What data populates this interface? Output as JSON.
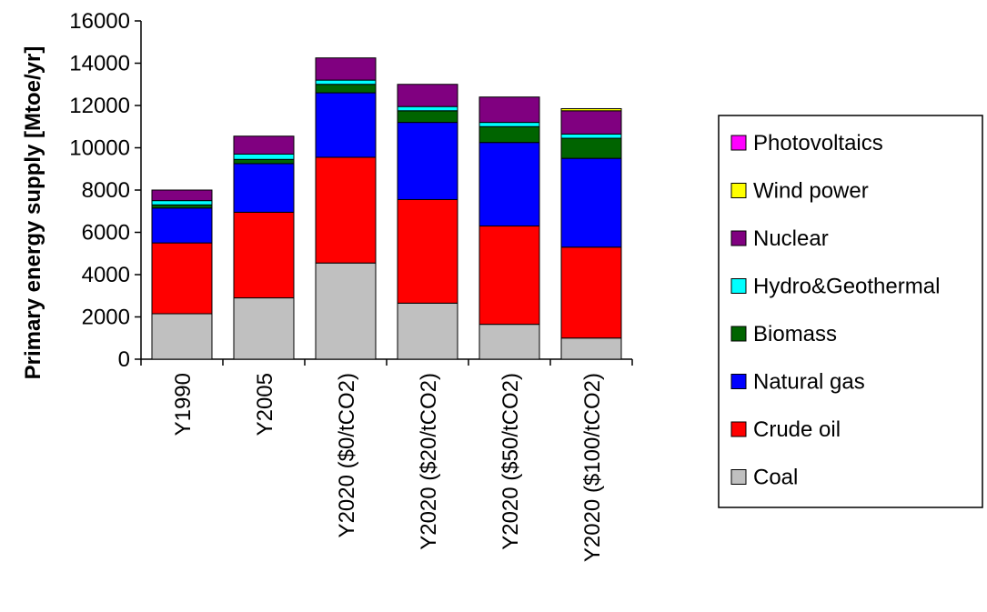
{
  "chart_data": {
    "type": "bar",
    "stacked": true,
    "title": "",
    "xlabel": "",
    "ylabel": "Primary energy supply [Mtoe/yr]",
    "ylim": [
      0,
      16000
    ],
    "yticks": [
      0,
      2000,
      4000,
      6000,
      8000,
      10000,
      12000,
      14000,
      16000
    ],
    "ytick_labels": [
      "0",
      "2000",
      "4000",
      "6000",
      "8000",
      "10000",
      "12000",
      "14000",
      "16000"
    ],
    "grid": false,
    "legend_position": "right",
    "categories": [
      "Y1990",
      "Y2005",
      "Y2020 ($0/tCO2)",
      "Y2020 ($20/tCO2)",
      "Y2020 ($50/tCO2)",
      "Y2020 ($100/tCO2)"
    ],
    "series": [
      {
        "name": "Coal",
        "color": "#c0c0c0",
        "values": [
          2150,
          2900,
          4550,
          2650,
          1650,
          1000
        ]
      },
      {
        "name": "Crude oil",
        "color": "#ff0000",
        "values": [
          3350,
          4050,
          5000,
          4900,
          4650,
          4300
        ]
      },
      {
        "name": "Natural gas",
        "color": "#0000ff",
        "values": [
          1650,
          2300,
          3050,
          3650,
          3950,
          4200
        ]
      },
      {
        "name": "Biomass",
        "color": "#006400",
        "values": [
          150,
          200,
          400,
          550,
          750,
          950
        ]
      },
      {
        "name": "Hydro&Geothermal",
        "color": "#00ffff",
        "values": [
          200,
          250,
          200,
          200,
          200,
          200
        ]
      },
      {
        "name": "Nuclear",
        "color": "#800080",
        "values": [
          500,
          850,
          1050,
          1050,
          1200,
          1100
        ]
      },
      {
        "name": "Wind power",
        "color": "#ffff00",
        "values": [
          0,
          0,
          0,
          0,
          0,
          100
        ]
      },
      {
        "name": "Photovoltaics",
        "color": "#ff00ff",
        "values": [
          0,
          0,
          0,
          0,
          0,
          0
        ]
      }
    ],
    "legend_order": [
      "Photovoltaics",
      "Wind power",
      "Nuclear",
      "Hydro&Geothermal",
      "Biomass",
      "Natural gas",
      "Crude oil",
      "Coal"
    ]
  }
}
